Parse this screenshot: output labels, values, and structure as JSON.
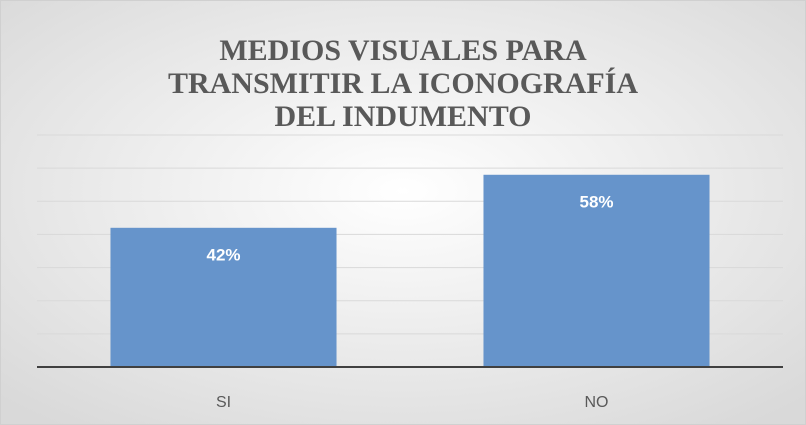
{
  "chart_data": {
    "type": "bar",
    "title": "MEDIOS VISUALES PARA TRANSMITIR LA ICONOGRAFÍA DEL INDUMENTO",
    "categories": [
      "SI",
      "NO"
    ],
    "values": [
      42,
      58
    ],
    "value_labels": [
      "42%",
      "58%"
    ],
    "color": "#6694cb",
    "ylim": [
      0,
      70
    ],
    "yticks": [
      0,
      10,
      20,
      30,
      40,
      50,
      60,
      70
    ],
    "grid": true
  }
}
